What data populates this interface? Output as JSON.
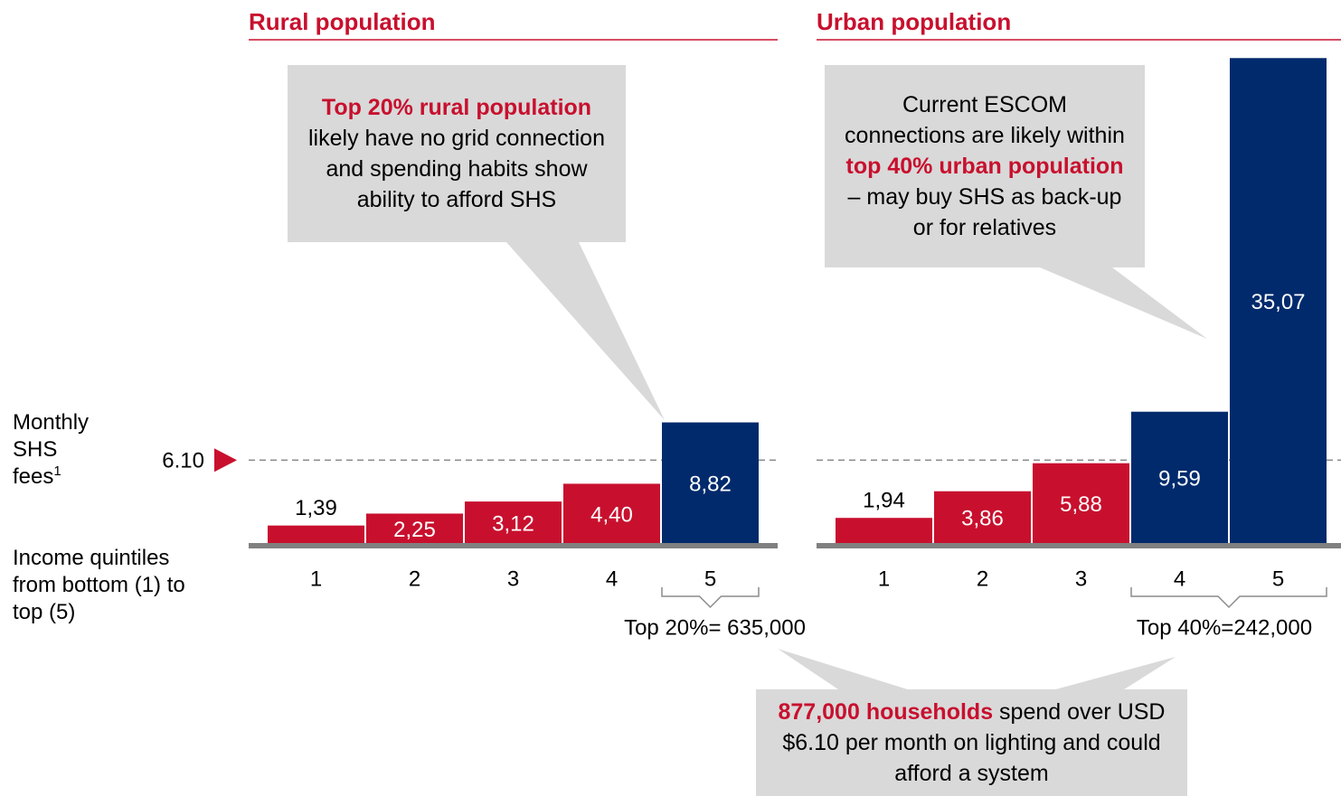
{
  "chart_data": [
    {
      "type": "bar",
      "title": "Rural population",
      "categories": [
        "1",
        "2",
        "3",
        "4",
        "5"
      ],
      "values": [
        1.39,
        2.25,
        3.12,
        4.4,
        8.82
      ],
      "value_labels": [
        "1,39",
        "2,25",
        "3,12",
        "4,40",
        "8,82"
      ],
      "colors": [
        "#c8102e",
        "#c8102e",
        "#c8102e",
        "#c8102e",
        "#002a6c"
      ],
      "ylim": [
        0,
        36
      ],
      "threshold": {
        "value": 6.1,
        "label": "6.10"
      },
      "group_label": "Top 20%= 635,000",
      "callout": [
        {
          "text": "Top 20% rural population",
          "emphasis": true
        },
        {
          "text": " likely have no grid connection and spending habits show ability to afford SHS",
          "emphasis": false
        }
      ]
    },
    {
      "type": "bar",
      "title": "Urban population",
      "categories": [
        "1",
        "2",
        "3",
        "4",
        "5"
      ],
      "values": [
        1.94,
        3.86,
        5.88,
        9.59,
        35.07
      ],
      "value_labels": [
        "1,94",
        "3,86",
        "5,88",
        "9,59",
        "35,07"
      ],
      "colors": [
        "#c8102e",
        "#c8102e",
        "#c8102e",
        "#002a6c",
        "#002a6c"
      ],
      "ylim": [
        0,
        36
      ],
      "group_label": "Top 40%=242,000",
      "callout": [
        {
          "text": "Current ESCOM connections are likely within ",
          "emphasis": false
        },
        {
          "text": "top 40% urban population",
          "emphasis": true
        },
        {
          "text": " – may buy SHS as back-up or for relatives",
          "emphasis": false
        }
      ]
    }
  ],
  "y_label": "Monthly SHS fees",
  "y_label_note": "1",
  "x_label": "Income quintiles from bottom (1) to top (5)",
  "summary": [
    {
      "text": "877,000 households",
      "emphasis": true
    },
    {
      "text": " spend over USD $6.10 per month on lighting and could afford a system",
      "emphasis": false
    }
  ]
}
